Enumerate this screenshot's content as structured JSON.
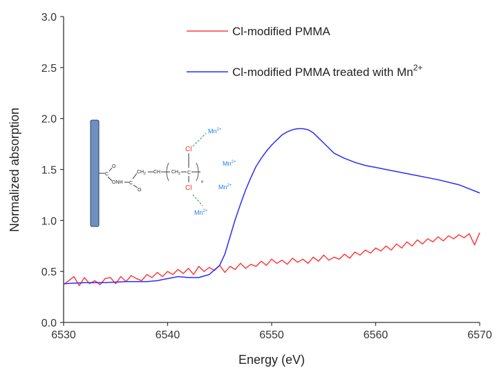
{
  "chart_data": {
    "type": "line",
    "xlabel": "Energy (eV)",
    "ylabel": "Normalized absorption",
    "xlim": [
      6530,
      6570
    ],
    "ylim": [
      0.0,
      3.0
    ],
    "xticks": [
      "6530",
      "6540",
      "6550",
      "6560",
      "6570"
    ],
    "yticks": [
      "0.0",
      "0.5",
      "1.0",
      "1.5",
      "2.0",
      "2.5",
      "3.0"
    ],
    "legend_position": "top-right",
    "series": [
      {
        "name": "Cl-modified PMMA",
        "color": "#ff3b3b",
        "x": [
          6530,
          6530.5,
          6531,
          6531.5,
          6532,
          6532.5,
          6533,
          6533.5,
          6534,
          6534.5,
          6535,
          6535.5,
          6536,
          6536.5,
          6537,
          6537.5,
          6538,
          6538.5,
          6539,
          6539.5,
          6540,
          6540.5,
          6541,
          6541.5,
          6542,
          6542.5,
          6543,
          6543.5,
          6544,
          6544.5,
          6545,
          6545.5,
          6546,
          6546.5,
          6547,
          6547.5,
          6548,
          6548.5,
          6549,
          6549.5,
          6550,
          6550.5,
          6551,
          6551.5,
          6552,
          6552.5,
          6553,
          6553.5,
          6554,
          6554.5,
          6555,
          6555.5,
          6556,
          6556.5,
          6557,
          6557.5,
          6558,
          6558.5,
          6559,
          6559.5,
          6560,
          6560.5,
          6561,
          6561.5,
          6562,
          6562.5,
          6563,
          6563.5,
          6564,
          6564.5,
          6565,
          6565.5,
          6566,
          6566.5,
          6567,
          6567.5,
          6568,
          6568.5,
          6569,
          6569.5,
          6570
        ],
        "y": [
          0.37,
          0.41,
          0.45,
          0.36,
          0.44,
          0.38,
          0.41,
          0.37,
          0.43,
          0.44,
          0.38,
          0.45,
          0.4,
          0.46,
          0.43,
          0.41,
          0.47,
          0.44,
          0.49,
          0.45,
          0.5,
          0.47,
          0.52,
          0.48,
          0.53,
          0.47,
          0.55,
          0.5,
          0.54,
          0.51,
          0.56,
          0.49,
          0.55,
          0.52,
          0.58,
          0.53,
          0.57,
          0.55,
          0.6,
          0.56,
          0.62,
          0.58,
          0.61,
          0.57,
          0.63,
          0.59,
          0.62,
          0.58,
          0.64,
          0.6,
          0.66,
          0.61,
          0.64,
          0.62,
          0.67,
          0.63,
          0.69,
          0.66,
          0.71,
          0.68,
          0.73,
          0.7,
          0.75,
          0.71,
          0.77,
          0.73,
          0.79,
          0.75,
          0.81,
          0.77,
          0.82,
          0.79,
          0.84,
          0.8,
          0.85,
          0.82,
          0.86,
          0.83,
          0.87,
          0.76,
          0.88
        ]
      },
      {
        "name": "Cl-modified PMMA treated with Mn",
        "name_superscript": "2+",
        "color": "#2a2aff",
        "x": [
          6530,
          6532,
          6534,
          6536,
          6538,
          6539,
          6540,
          6541,
          6542,
          6543,
          6544,
          6545,
          6545.5,
          6546,
          6546.5,
          6547,
          6547.5,
          6548,
          6548.5,
          6549,
          6549.5,
          6550,
          6550.5,
          6551,
          6551.5,
          6552,
          6552.5,
          6553,
          6553.5,
          6554,
          6554.5,
          6555,
          6555.5,
          6556,
          6557,
          6558,
          6559,
          6560,
          6562,
          6564,
          6566,
          6568,
          6570
        ],
        "y": [
          0.38,
          0.39,
          0.39,
          0.4,
          0.4,
          0.41,
          0.43,
          0.45,
          0.44,
          0.44,
          0.47,
          0.56,
          0.67,
          0.84,
          1.01,
          1.16,
          1.3,
          1.42,
          1.53,
          1.61,
          1.68,
          1.74,
          1.79,
          1.84,
          1.87,
          1.89,
          1.9,
          1.9,
          1.89,
          1.86,
          1.81,
          1.76,
          1.71,
          1.66,
          1.61,
          1.57,
          1.54,
          1.52,
          1.48,
          1.44,
          1.4,
          1.35,
          1.27
        ]
      }
    ]
  },
  "inset": {
    "labels": {
      "mn_top": "Mn",
      "mn_mid": "Mn",
      "mn_right": "Mn",
      "mn_bottom": "Mn",
      "charge": "2+",
      "cl_top": "Cl",
      "cl_bottom": "Cl",
      "c_top": "C",
      "onh": "ONH",
      "c_bottom": "C",
      "o_top": "O",
      "o_bottom": "O",
      "ch2": "CH",
      "ch": "CH",
      "ch2b": "CH",
      "c_center": "C",
      "sub2": "2",
      "n_sub": "n"
    },
    "colors": {
      "mn": "#1e7ff0",
      "cl": "#e8322a",
      "bond": "#333333",
      "dashed": "#30b060",
      "bar": "#6f8fc0"
    }
  }
}
